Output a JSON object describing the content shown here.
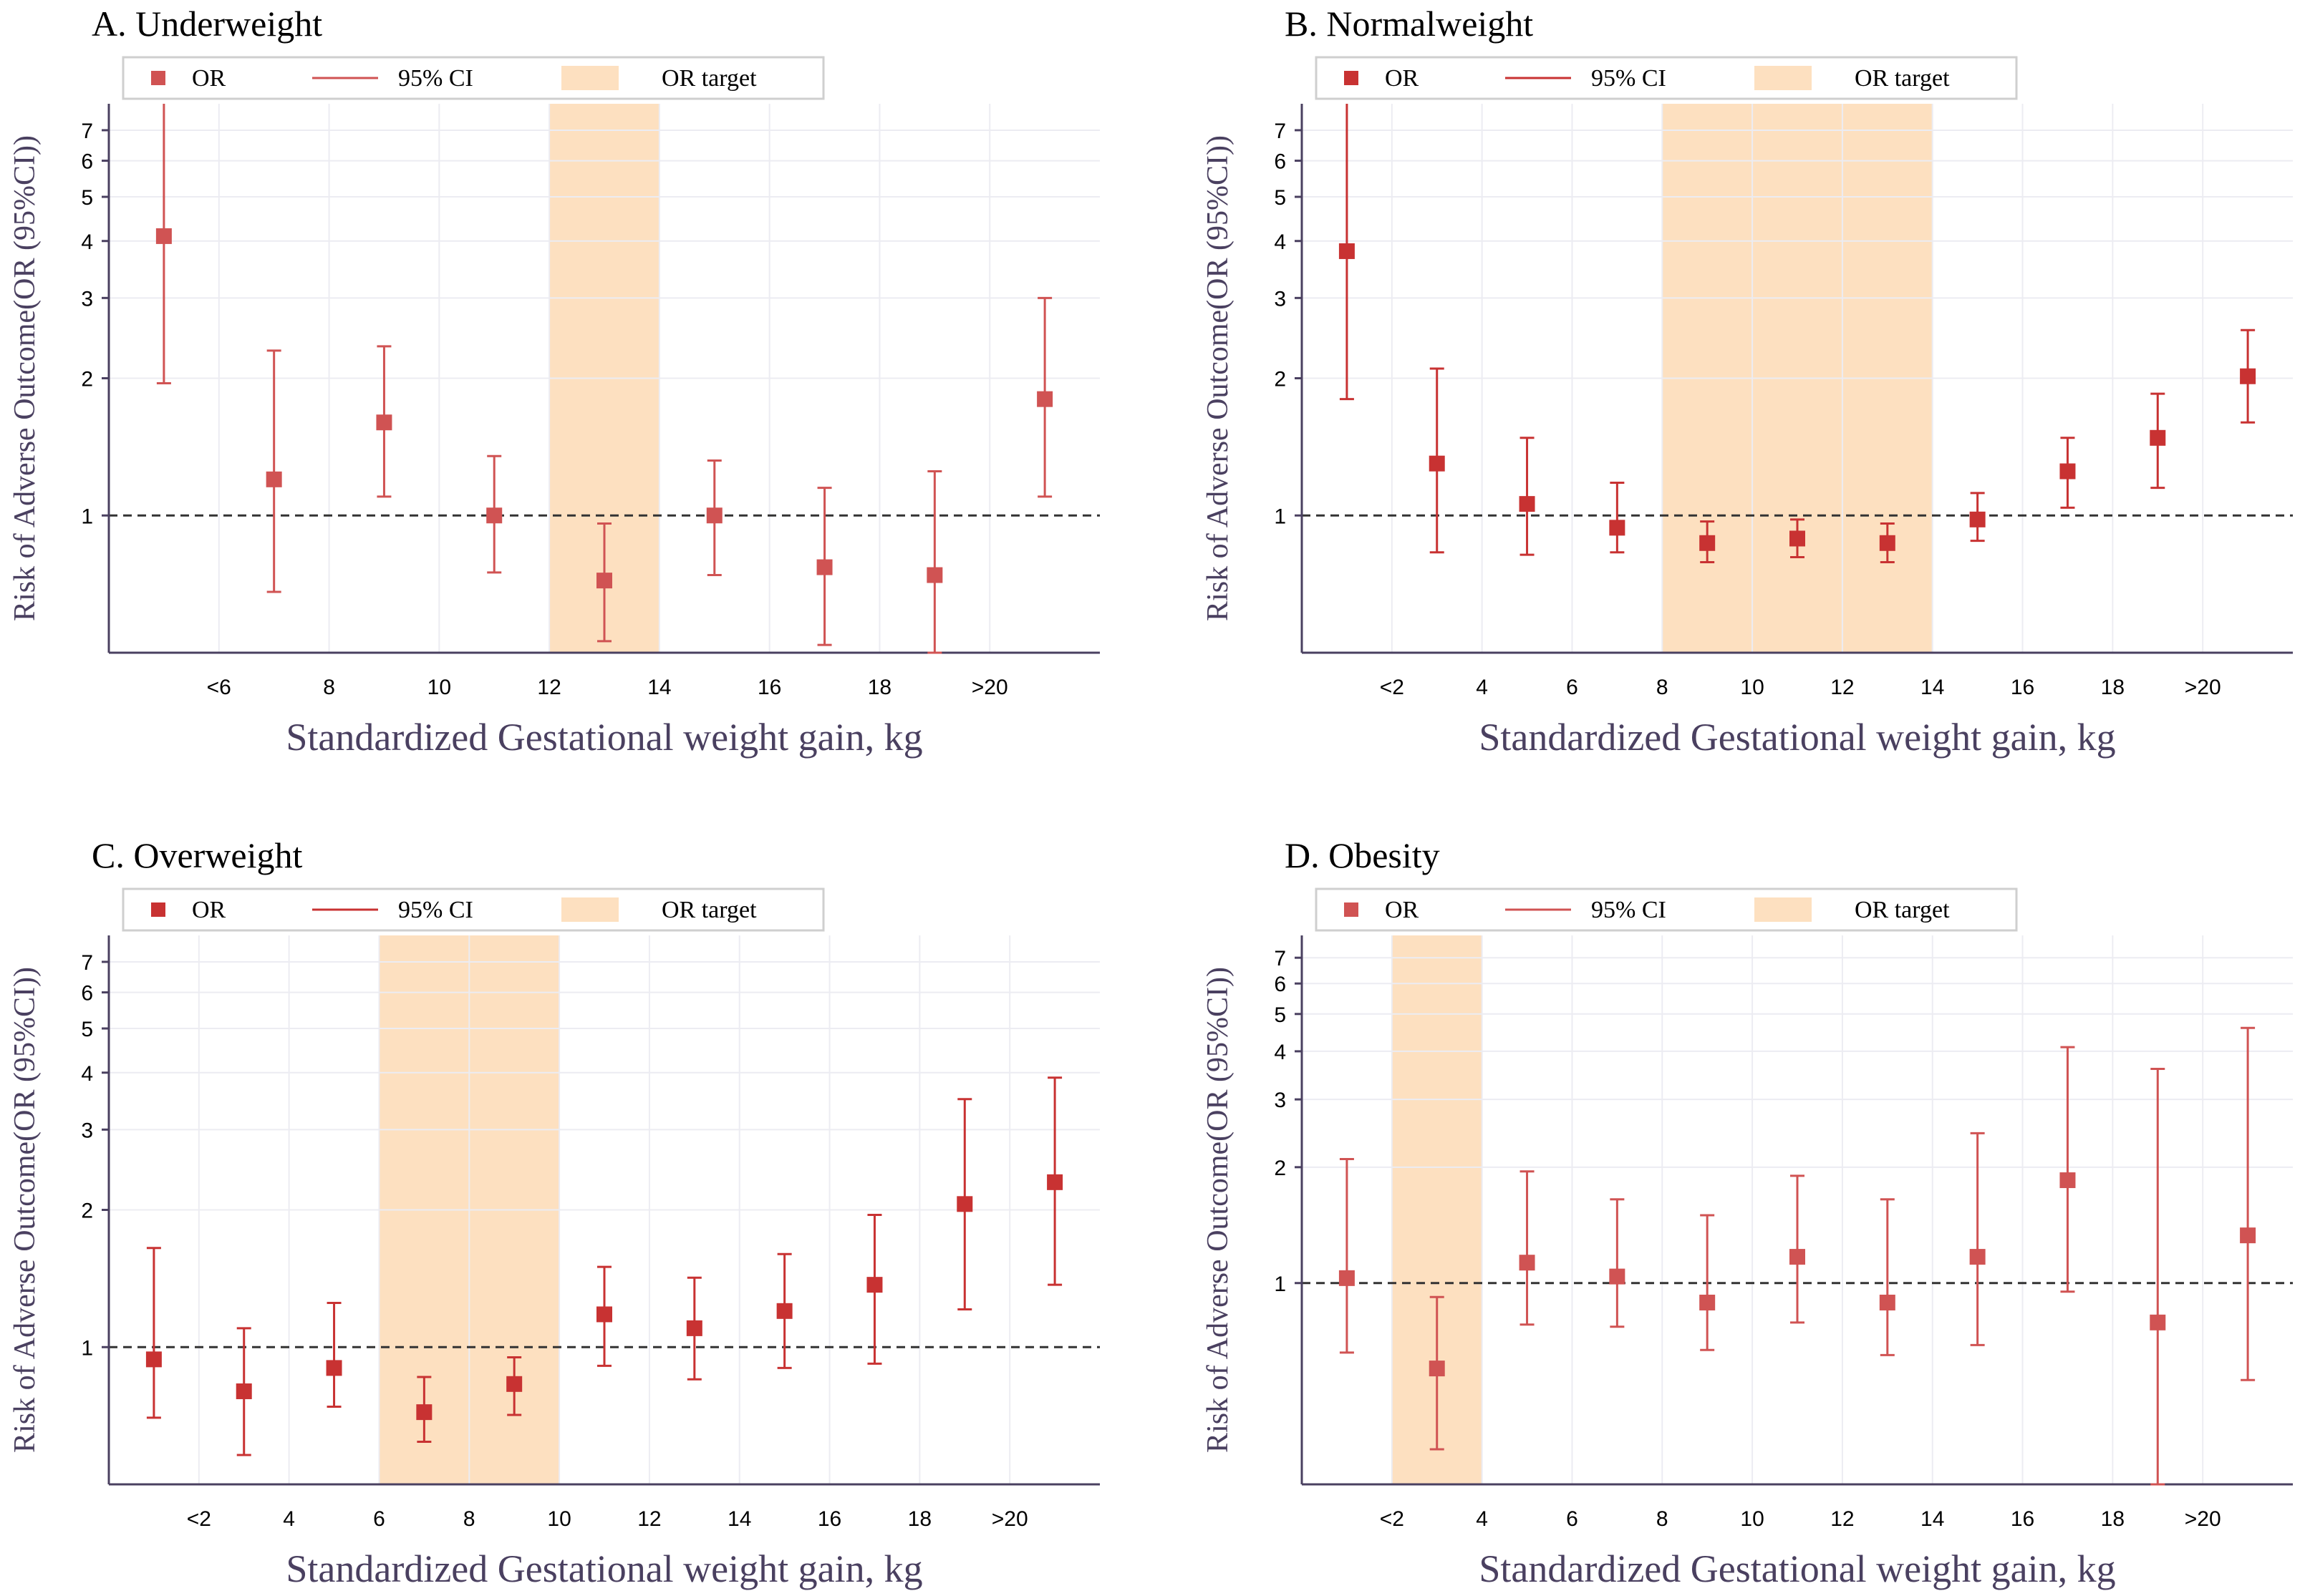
{
  "chart_data": [
    {
      "type": "scatter",
      "title": "A. Underweight",
      "xlabel": "Standardized Gestational weight gain,   kg",
      "ylabel": "Risk of Adverse Outcome(OR (95%CI))",
      "yscale": "log",
      "ylim": [
        0.5,
        8
      ],
      "yticks": [
        "1",
        "2",
        "3",
        "4",
        "5",
        "6",
        "7"
      ],
      "xlim": [
        4,
        22
      ],
      "xticks": [
        {
          "value": 6,
          "label": "<6"
        },
        {
          "value": 8,
          "label": "8"
        },
        {
          "value": 10,
          "label": "10"
        },
        {
          "value": 12,
          "label": "12"
        },
        {
          "value": 14,
          "label": "14"
        },
        {
          "value": 16,
          "label": "16"
        },
        {
          "value": 18,
          "label": "18"
        },
        {
          "value": 20,
          "label": ">20"
        }
      ],
      "target_range": [
        12,
        14
      ],
      "marker_color": "#d05353",
      "target_color": "#fde0c0",
      "legend": {
        "or": "OR",
        "ci": "95%  CI",
        "target": "OR  target"
      },
      "points": [
        {
          "x": 5,
          "or": 4.1,
          "lo": 1.95,
          "hi": 8.0
        },
        {
          "x": 7,
          "or": 1.2,
          "lo": 0.68,
          "hi": 2.3
        },
        {
          "x": 9,
          "or": 1.6,
          "lo": 1.1,
          "hi": 2.35
        },
        {
          "x": 11,
          "or": 1.0,
          "lo": 0.75,
          "hi": 1.35
        },
        {
          "x": 13,
          "or": 0.72,
          "lo": 0.53,
          "hi": 0.96
        },
        {
          "x": 15,
          "or": 1.0,
          "lo": 0.74,
          "hi": 1.32
        },
        {
          "x": 17,
          "or": 0.77,
          "lo": 0.52,
          "hi": 1.15
        },
        {
          "x": 19,
          "or": 0.74,
          "lo": 0.45,
          "hi": 1.25
        },
        {
          "x": 21,
          "or": 1.8,
          "lo": 1.1,
          "hi": 3.0
        }
      ]
    },
    {
      "type": "scatter",
      "title": "B. Normalweight",
      "xlabel": "Standardized Gestational weight gain,   kg",
      "ylabel": "Risk of Adverse Outcome(OR (95%CI))",
      "yscale": "log",
      "ylim": [
        0.5,
        8
      ],
      "yticks": [
        "1",
        "2",
        "3",
        "4",
        "5",
        "6",
        "7"
      ],
      "xlim": [
        0,
        22
      ],
      "xticks": [
        {
          "value": 2,
          "label": "<2"
        },
        {
          "value": 4,
          "label": "4"
        },
        {
          "value": 6,
          "label": "6"
        },
        {
          "value": 8,
          "label": "8"
        },
        {
          "value": 10,
          "label": "10"
        },
        {
          "value": 12,
          "label": "12"
        },
        {
          "value": 14,
          "label": "14"
        },
        {
          "value": 16,
          "label": "16"
        },
        {
          "value": 18,
          "label": "18"
        },
        {
          "value": 20,
          "label": ">20"
        }
      ],
      "target_range": [
        8,
        14
      ],
      "marker_color": "#c83232",
      "target_color": "#fde0c0",
      "legend": {
        "or": "OR",
        "ci": "95%  CI",
        "target": "OR  target"
      },
      "points": [
        {
          "x": 1,
          "or": 3.8,
          "lo": 1.8,
          "hi": 8.0
        },
        {
          "x": 3,
          "or": 1.3,
          "lo": 0.83,
          "hi": 2.1
        },
        {
          "x": 5,
          "or": 1.06,
          "lo": 0.82,
          "hi": 1.48
        },
        {
          "x": 7,
          "or": 0.94,
          "lo": 0.83,
          "hi": 1.18
        },
        {
          "x": 9,
          "or": 0.87,
          "lo": 0.79,
          "hi": 0.97
        },
        {
          "x": 11,
          "or": 0.89,
          "lo": 0.81,
          "hi": 0.98
        },
        {
          "x": 13,
          "or": 0.87,
          "lo": 0.79,
          "hi": 0.96
        },
        {
          "x": 15,
          "or": 0.98,
          "lo": 0.88,
          "hi": 1.12
        },
        {
          "x": 17,
          "or": 1.25,
          "lo": 1.04,
          "hi": 1.48
        },
        {
          "x": 19,
          "or": 1.48,
          "lo": 1.15,
          "hi": 1.85
        },
        {
          "x": 21,
          "or": 2.02,
          "lo": 1.6,
          "hi": 2.55
        }
      ]
    },
    {
      "type": "scatter",
      "title": "C. Overweight",
      "xlabel": "Standardized Gestational weight gain,   kg",
      "ylabel": "Risk of Adverse Outcome(OR (95%CI))",
      "yscale": "log",
      "ylim": [
        0.5,
        8
      ],
      "yticks": [
        "1",
        "2",
        "3",
        "4",
        "5",
        "6",
        "7"
      ],
      "xlim": [
        0,
        22
      ],
      "xticks": [
        {
          "value": 2,
          "label": "<2"
        },
        {
          "value": 4,
          "label": "4"
        },
        {
          "value": 6,
          "label": "6"
        },
        {
          "value": 8,
          "label": "8"
        },
        {
          "value": 10,
          "label": "10"
        },
        {
          "value": 12,
          "label": "12"
        },
        {
          "value": 14,
          "label": "14"
        },
        {
          "value": 16,
          "label": "16"
        },
        {
          "value": 18,
          "label": "18"
        },
        {
          "value": 20,
          "label": ">20"
        }
      ],
      "target_range": [
        6,
        10
      ],
      "marker_color": "#c83232",
      "target_color": "#fde0c0",
      "legend": {
        "or": "OR",
        "ci": "95%  CI",
        "target": "OR  target"
      },
      "points": [
        {
          "x": 1,
          "or": 0.94,
          "lo": 0.7,
          "hi": 1.65
        },
        {
          "x": 3,
          "or": 0.8,
          "lo": 0.58,
          "hi": 1.1
        },
        {
          "x": 5,
          "or": 0.9,
          "lo": 0.74,
          "hi": 1.25
        },
        {
          "x": 7,
          "or": 0.72,
          "lo": 0.62,
          "hi": 0.86
        },
        {
          "x": 9,
          "or": 0.83,
          "lo": 0.71,
          "hi": 0.95
        },
        {
          "x": 11,
          "or": 1.18,
          "lo": 0.91,
          "hi": 1.5
        },
        {
          "x": 13,
          "or": 1.1,
          "lo": 0.85,
          "hi": 1.42
        },
        {
          "x": 15,
          "or": 1.2,
          "lo": 0.9,
          "hi": 1.6
        },
        {
          "x": 17,
          "or": 1.37,
          "lo": 0.92,
          "hi": 1.95
        },
        {
          "x": 19,
          "or": 2.06,
          "lo": 1.21,
          "hi": 3.5
        },
        {
          "x": 21,
          "or": 2.3,
          "lo": 1.37,
          "hi": 3.9
        }
      ]
    },
    {
      "type": "scatter",
      "title": "D. Obesity",
      "xlabel": "Standardized Gestational weight gain,   kg",
      "ylabel": "Risk of Adverse Outcome(OR (95%CI))",
      "yscale": "log",
      "ylim": [
        0.3,
        8
      ],
      "yticks": [
        "1",
        "2",
        "3",
        "4",
        "5",
        "6",
        "7"
      ],
      "xlim": [
        0,
        22
      ],
      "xticks": [
        {
          "value": 2,
          "label": "<2"
        },
        {
          "value": 4,
          "label": "4"
        },
        {
          "value": 6,
          "label": "6"
        },
        {
          "value": 8,
          "label": "8"
        },
        {
          "value": 10,
          "label": "10"
        },
        {
          "value": 12,
          "label": "12"
        },
        {
          "value": 14,
          "label": "14"
        },
        {
          "value": 16,
          "label": "16"
        },
        {
          "value": 18,
          "label": "18"
        },
        {
          "value": 20,
          "label": ">20"
        }
      ],
      "target_range": [
        2,
        4
      ],
      "marker_color": "#d05353",
      "target_color": "#fde0c0",
      "legend": {
        "or": "OR",
        "ci": "95%  CI",
        "target": "OR  target"
      },
      "points": [
        {
          "x": 1,
          "or": 1.03,
          "lo": 0.66,
          "hi": 2.1
        },
        {
          "x": 3,
          "or": 0.6,
          "lo": 0.37,
          "hi": 0.92
        },
        {
          "x": 5,
          "or": 1.13,
          "lo": 0.78,
          "hi": 1.95
        },
        {
          "x": 7,
          "or": 1.04,
          "lo": 0.77,
          "hi": 1.65
        },
        {
          "x": 9,
          "or": 0.89,
          "lo": 0.67,
          "hi": 1.5
        },
        {
          "x": 11,
          "or": 1.17,
          "lo": 0.79,
          "hi": 1.9
        },
        {
          "x": 13,
          "or": 0.89,
          "lo": 0.65,
          "hi": 1.65
        },
        {
          "x": 15,
          "or": 1.17,
          "lo": 0.69,
          "hi": 2.45
        },
        {
          "x": 17,
          "or": 1.85,
          "lo": 0.95,
          "hi": 4.1
        },
        {
          "x": 19,
          "or": 0.79,
          "lo": 0.3,
          "hi": 3.6
        },
        {
          "x": 21,
          "or": 1.33,
          "lo": 0.56,
          "hi": 4.6
        }
      ]
    }
  ]
}
